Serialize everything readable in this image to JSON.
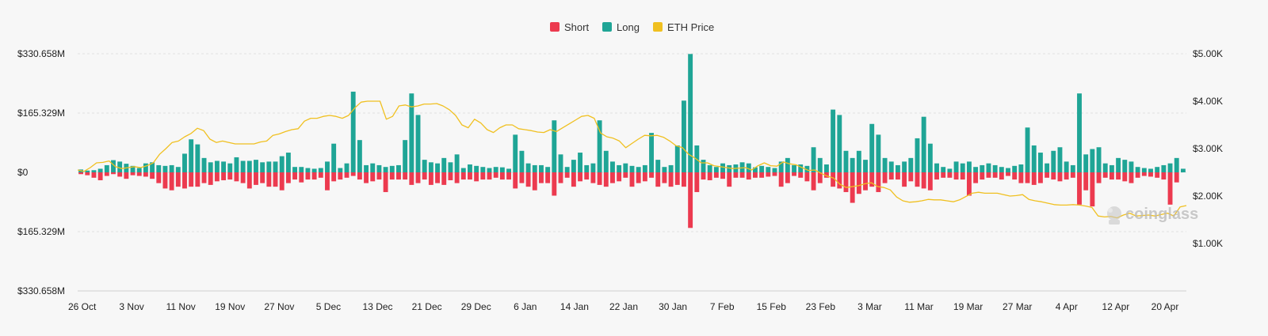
{
  "chart_data": {
    "type": "bar+line",
    "title": "",
    "legend": [
      {
        "name": "Short",
        "color": "#ec3a4f"
      },
      {
        "name": "Long",
        "color": "#1fa596"
      },
      {
        "name": "ETH Price",
        "color": "#f0c020"
      }
    ],
    "watermark": "coinglass",
    "y_left": {
      "ticks": [
        330.658,
        165.329,
        0,
        -165.329,
        -330.658
      ],
      "tick_labels": [
        "$330.658M",
        "$165.329M",
        "$0",
        "$165.329M",
        "$330.658M"
      ],
      "range": [
        -330.658,
        330.658
      ],
      "unit": "USD millions"
    },
    "y_right": {
      "ticks": [
        5000,
        4000,
        3000,
        2000,
        1000
      ],
      "tick_labels": [
        "$5.00K",
        "$4.00K",
        "$3.00K",
        "$2.00K",
        "$1.00K"
      ],
      "range": [
        0,
        5000
      ],
      "unit": "USD"
    },
    "x_tick_labels": [
      "26 Oct",
      "3 Nov",
      "11 Nov",
      "19 Nov",
      "27 Nov",
      "5 Dec",
      "13 Dec",
      "21 Dec",
      "29 Dec",
      "6 Jan",
      "14 Jan",
      "22 Jan",
      "30 Jan",
      "7 Feb",
      "15 Feb",
      "23 Feb",
      "3 Mar",
      "11 Mar",
      "19 Mar",
      "27 Mar",
      "4 Apr",
      "12 Apr",
      "20 Apr"
    ],
    "long": [
      8,
      5,
      6,
      10,
      20,
      34,
      30,
      24,
      18,
      12,
      25,
      28,
      20,
      18,
      20,
      15,
      52,
      92,
      78,
      40,
      28,
      32,
      30,
      25,
      42,
      32,
      32,
      35,
      28,
      30,
      30,
      45,
      55,
      15,
      15,
      12,
      10,
      12,
      30,
      80,
      12,
      25,
      225,
      90,
      20,
      25,
      20,
      15,
      18,
      20,
      90,
      220,
      160,
      35,
      28,
      25,
      40,
      28,
      50,
      12,
      22,
      18,
      15,
      12,
      15,
      14,
      10,
      105,
      60,
      25,
      20,
      20,
      15,
      145,
      50,
      15,
      35,
      55,
      20,
      25,
      145,
      60,
      30,
      20,
      25,
      18,
      15,
      20,
      110,
      35,
      15,
      20,
      75,
      200,
      330,
      75,
      35,
      20,
      15,
      25,
      20,
      22,
      28,
      25,
      14,
      18,
      15,
      12,
      30,
      40,
      20,
      22,
      18,
      70,
      40,
      22,
      175,
      160,
      60,
      40,
      60,
      35,
      135,
      105,
      40,
      30,
      20,
      30,
      40,
      95,
      155,
      80,
      25,
      15,
      10,
      30,
      25,
      30,
      15,
      20,
      25,
      20,
      15,
      12,
      18,
      22,
      125,
      75,
      55,
      25,
      60,
      70,
      30,
      20,
      220,
      50,
      65,
      70,
      25,
      20,
      40,
      35,
      30,
      15,
      12,
      10,
      15,
      20,
      25,
      40,
      10
    ],
    "short": [
      -5,
      -8,
      -15,
      -22,
      -10,
      -5,
      -12,
      -18,
      -8,
      -10,
      -12,
      -18,
      -30,
      -45,
      -50,
      -40,
      -45,
      -40,
      -40,
      -30,
      -35,
      -25,
      -22,
      -20,
      -25,
      -30,
      -45,
      -35,
      -30,
      -40,
      -40,
      -50,
      -30,
      -20,
      -28,
      -20,
      -20,
      -15,
      -50,
      -25,
      -20,
      -15,
      -10,
      -20,
      -30,
      -25,
      -20,
      -55,
      -20,
      -20,
      -20,
      -35,
      -30,
      -20,
      -35,
      -30,
      -35,
      -22,
      -30,
      -20,
      -20,
      -25,
      -20,
      -20,
      -15,
      -20,
      -20,
      -45,
      -30,
      -40,
      -50,
      -30,
      -30,
      -65,
      -30,
      -15,
      -40,
      -25,
      -20,
      -30,
      -35,
      -40,
      -30,
      -25,
      -15,
      -40,
      -30,
      -25,
      -15,
      -40,
      -30,
      -40,
      -35,
      -40,
      -155,
      -55,
      -20,
      -22,
      -15,
      -18,
      -40,
      -15,
      -15,
      -20,
      -15,
      -15,
      -12,
      -10,
      -40,
      -30,
      -10,
      -15,
      -25,
      -50,
      -30,
      -15,
      -40,
      -45,
      -55,
      -85,
      -60,
      -50,
      -40,
      -55,
      -30,
      -20,
      -20,
      -40,
      -25,
      -40,
      -45,
      -50,
      -20,
      -15,
      -15,
      -20,
      -20,
      -65,
      -30,
      -20,
      -15,
      -15,
      -20,
      -10,
      -20,
      -30,
      -30,
      -35,
      -30,
      -15,
      -20,
      -25,
      -20,
      -15,
      -90,
      -50,
      -95,
      -30,
      -15,
      -20,
      -20,
      -25,
      -30,
      -15,
      -10,
      -12,
      -15,
      -20,
      -90,
      -28
    ],
    "eth_price": [
      2550,
      2520,
      2600,
      2700,
      2710,
      2740,
      2620,
      2580,
      2600,
      2620,
      2600,
      2640,
      2700,
      2880,
      3000,
      3130,
      3160,
      3250,
      3320,
      3430,
      3380,
      3200,
      3130,
      3160,
      3130,
      3100,
      3100,
      3100,
      3100,
      3140,
      3160,
      3280,
      3310,
      3360,
      3400,
      3420,
      3580,
      3640,
      3640,
      3680,
      3700,
      3680,
      3640,
      3700,
      3860,
      3980,
      4000,
      4000,
      4000,
      3620,
      3680,
      3900,
      3920,
      3880,
      3900,
      3940,
      3940,
      3950,
      3900,
      3820,
      3700,
      3500,
      3440,
      3620,
      3540,
      3400,
      3340,
      3440,
      3500,
      3500,
      3420,
      3400,
      3380,
      3350,
      3340,
      3400,
      3360,
      3440,
      3520,
      3600,
      3680,
      3700,
      3640,
      3330,
      3250,
      3220,
      3160,
      3020,
      3110,
      3200,
      3280,
      3270,
      3280,
      3240,
      3160,
      3060,
      3020,
      2880,
      2800,
      2700,
      2700,
      2640,
      2620,
      2600,
      2580,
      2590,
      2600,
      2550,
      2640,
      2700,
      2640,
      2630,
      2720,
      2680,
      2660,
      2600,
      2540,
      2550,
      2480,
      2420,
      2380,
      2250,
      2180,
      2200,
      2220,
      2260,
      2280,
      2200,
      2180,
      2130,
      1980,
      1900,
      1870,
      1880,
      1900,
      1930,
      1920,
      1920,
      1900,
      1880,
      1920,
      1990,
      2060,
      2080,
      2060,
      2060,
      2060,
      2030,
      2000,
      2010,
      2030,
      1930,
      1900,
      1880,
      1850,
      1820,
      1810,
      1810,
      1820,
      1810,
      1790,
      1760,
      1580,
      1560,
      1570,
      1540,
      1600,
      1640,
      1580,
      1590,
      1600,
      1580,
      1610,
      1640,
      1580,
      1770,
      1800
    ]
  }
}
